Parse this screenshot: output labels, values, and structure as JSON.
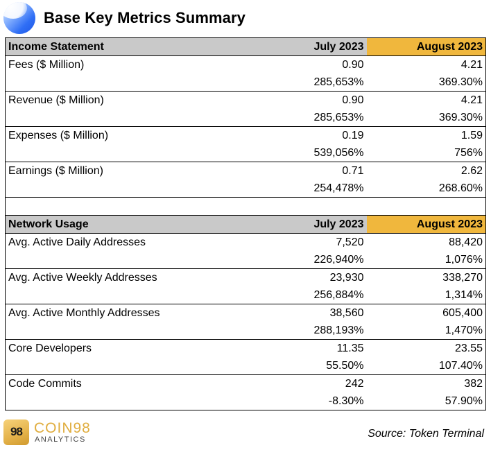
{
  "title": "Base Key Metrics Summary",
  "colors": {
    "header_gray": "#c9c9c9",
    "header_gold": "#f0b73d",
    "logo_blue": "#2f6ef5",
    "brand_gold": "#e0ad3e"
  },
  "income": {
    "header": [
      "Income Statement",
      "July 2023",
      "August 2023"
    ],
    "rows": [
      {
        "label": "Fees ($ Million)",
        "jul": "0.90",
        "aug": "4.21",
        "jul_pct": "285,653%",
        "aug_pct": "369.30%"
      },
      {
        "label": "Revenue ($ Million)",
        "jul": "0.90",
        "aug": "4.21",
        "jul_pct": "285,653%",
        "aug_pct": "369.30%"
      },
      {
        "label": "Expenses ($ Million)",
        "jul": "0.19",
        "aug": "1.59",
        "jul_pct": "539,056%",
        "aug_pct": "756%"
      },
      {
        "label": "Earnings ($ Million)",
        "jul": "0.71",
        "aug": "2.62",
        "jul_pct": "254,478%",
        "aug_pct": "268.60%"
      }
    ]
  },
  "network": {
    "header": [
      "Network Usage",
      "July 2023",
      "August 2023"
    ],
    "rows": [
      {
        "label": "Avg. Active Daily Addresses",
        "jul": "7,520",
        "aug": "88,420",
        "jul_pct": "226,940%",
        "aug_pct": "1,076%"
      },
      {
        "label": "Avg. Active Weekly Addresses",
        "jul": "23,930",
        "aug": "338,270",
        "jul_pct": "256,884%",
        "aug_pct": "1,314%"
      },
      {
        "label": "Avg. Active Monthly Addresses",
        "jul": "38,560",
        "aug": "605,400",
        "jul_pct": "288,193%",
        "aug_pct": "1,470%"
      },
      {
        "label": "Core Developers",
        "jul": "11.35",
        "aug": "23.55",
        "jul_pct": "55.50%",
        "aug_pct": "107.40%"
      },
      {
        "label": "Code Commits",
        "jul": "242",
        "aug": "382",
        "jul_pct": "-8.30%",
        "aug_pct": "57.90%"
      }
    ]
  },
  "footer": {
    "logo_glyph": "98",
    "brand": "COIN98",
    "brand_sub": "ANALYTICS",
    "source": "Source: Token Terminal"
  }
}
